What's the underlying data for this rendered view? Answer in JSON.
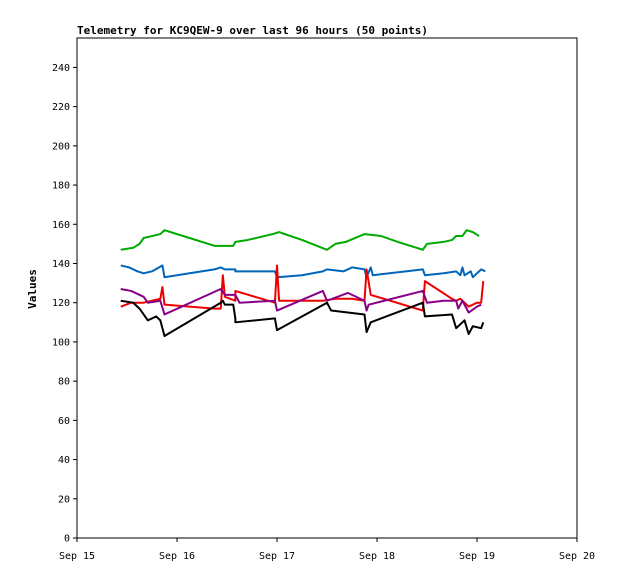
{
  "chart_data": {
    "type": "line",
    "title": "Telemetry for KC9QEW-9 over last 96 hours (50 points)",
    "xlabel": "",
    "ylabel": "Values",
    "xlim": [
      "2012-09-15",
      "2012-09-20"
    ],
    "ylim": [
      0,
      255
    ],
    "x_ticks": [
      "Sep 15",
      "Sep 16",
      "Sep 17",
      "Sep 18",
      "Sep 19",
      "Sep 20"
    ],
    "y_ticks": [
      0,
      20,
      40,
      60,
      80,
      100,
      120,
      140,
      160,
      180,
      200,
      220,
      240
    ],
    "grid": false,
    "legend": "none",
    "series": [
      {
        "color": "#00aa00",
        "points": [
          [
            "2012-09-15 10:30",
            147
          ],
          [
            "2012-09-15 13:30",
            148
          ],
          [
            "2012-09-15 15:00",
            150
          ],
          [
            "2012-09-15 16:00",
            153
          ],
          [
            "2012-09-15 18:00",
            154
          ],
          [
            "2012-09-15 20:00",
            155
          ],
          [
            "2012-09-15 21:00",
            157
          ],
          [
            "2012-09-16 03:00",
            153
          ],
          [
            "2012-09-16 09:00",
            149
          ],
          [
            "2012-09-16 11:00",
            149
          ],
          [
            "2012-09-16 13:30",
            149
          ],
          [
            "2012-09-16 14:00",
            151
          ],
          [
            "2012-09-16 17:00",
            152
          ],
          [
            "2012-09-16 23:00",
            155
          ],
          [
            "2012-09-17 00:30",
            156
          ],
          [
            "2012-09-17 06:00",
            152
          ],
          [
            "2012-09-17 12:00",
            147
          ],
          [
            "2012-09-17 14:00",
            150
          ],
          [
            "2012-09-17 16:30",
            151
          ],
          [
            "2012-09-17 21:00",
            155
          ],
          [
            "2012-09-18 01:00",
            154
          ],
          [
            "2012-09-18 05:00",
            151
          ],
          [
            "2012-09-18 11:00",
            147
          ],
          [
            "2012-09-18 12:00",
            150
          ],
          [
            "2012-09-18 16:00",
            151
          ],
          [
            "2012-09-18 18:00",
            152
          ],
          [
            "2012-09-18 19:00",
            154
          ],
          [
            "2012-09-18 20:30",
            154
          ],
          [
            "2012-09-18 21:30",
            157
          ],
          [
            "2012-09-18 23:00",
            156
          ],
          [
            "2012-09-19 00:30",
            154
          ]
        ]
      },
      {
        "color": "#0066bb",
        "points": [
          [
            "2012-09-15 10:30",
            139
          ],
          [
            "2012-09-15 12:30",
            138
          ],
          [
            "2012-09-15 14:30",
            136
          ],
          [
            "2012-09-15 16:00",
            135
          ],
          [
            "2012-09-15 18:00",
            136
          ],
          [
            "2012-09-15 20:30",
            139
          ],
          [
            "2012-09-15 21:00",
            133
          ],
          [
            "2012-09-16 03:00",
            135
          ],
          [
            "2012-09-16 09:00",
            137
          ],
          [
            "2012-09-16 10:30",
            138
          ],
          [
            "2012-09-16 11:30",
            137
          ],
          [
            "2012-09-16 14:00",
            137
          ],
          [
            "2012-09-16 14:00",
            136
          ],
          [
            "2012-09-16 23:30",
            136
          ],
          [
            "2012-09-17 00:00",
            133
          ],
          [
            "2012-09-17 06:00",
            134
          ],
          [
            "2012-09-17 11:00",
            136
          ],
          [
            "2012-09-17 12:00",
            137
          ],
          [
            "2012-09-17 16:00",
            136
          ],
          [
            "2012-09-17 18:00",
            138
          ],
          [
            "2012-09-17 21:00",
            137
          ],
          [
            "2012-09-17 21:30",
            133
          ],
          [
            "2012-09-17 22:30",
            138
          ],
          [
            "2012-09-17 23:00",
            134
          ],
          [
            "2012-09-18 11:00",
            137
          ],
          [
            "2012-09-18 11:30",
            134
          ],
          [
            "2012-09-18 16:00",
            135
          ],
          [
            "2012-09-18 19:00",
            136
          ],
          [
            "2012-09-18 20:00",
            134
          ],
          [
            "2012-09-18 20:30",
            138
          ],
          [
            "2012-09-18 21:00",
            134
          ],
          [
            "2012-09-18 22:30",
            136
          ],
          [
            "2012-09-18 23:00",
            133
          ],
          [
            "2012-09-19 01:00",
            137
          ],
          [
            "2012-09-19 02:00",
            136
          ]
        ]
      },
      {
        "color": "#ee0000",
        "points": [
          [
            "2012-09-15 10:30",
            118
          ],
          [
            "2012-09-15 13:00",
            120
          ],
          [
            "2012-09-15 16:00",
            120
          ],
          [
            "2012-09-15 20:00",
            122
          ],
          [
            "2012-09-15 20:30",
            128
          ],
          [
            "2012-09-15 21:00",
            119
          ],
          [
            "2012-09-16 09:00",
            117
          ],
          [
            "2012-09-16 10:30",
            117
          ],
          [
            "2012-09-16 11:00",
            134
          ],
          [
            "2012-09-16 11:30",
            123
          ],
          [
            "2012-09-16 14:00",
            121
          ],
          [
            "2012-09-16 14:00",
            126
          ],
          [
            "2012-09-16 23:30",
            120
          ],
          [
            "2012-09-17 00:00",
            139
          ],
          [
            "2012-09-17 00:30",
            121
          ],
          [
            "2012-09-17 11:00",
            121
          ],
          [
            "2012-09-17 14:00",
            122
          ],
          [
            "2012-09-17 18:00",
            122
          ],
          [
            "2012-09-17 21:00",
            121
          ],
          [
            "2012-09-17 21:30",
            137
          ],
          [
            "2012-09-17 22:30",
            124
          ],
          [
            "2012-09-18 11:00",
            116
          ],
          [
            "2012-09-18 11:30",
            131
          ],
          [
            "2012-09-18 18:00",
            122
          ],
          [
            "2012-09-18 19:00",
            121
          ],
          [
            "2012-09-18 20:00",
            122
          ],
          [
            "2012-09-18 22:00",
            118
          ],
          [
            "2012-09-19 00:00",
            120
          ],
          [
            "2012-09-19 01:00",
            120
          ],
          [
            "2012-09-19 01:30",
            131
          ]
        ]
      },
      {
        "color": "#880088",
        "points": [
          [
            "2012-09-15 10:30",
            127
          ],
          [
            "2012-09-15 13:00",
            126
          ],
          [
            "2012-09-15 16:00",
            123
          ],
          [
            "2012-09-15 17:00",
            120
          ],
          [
            "2012-09-15 20:00",
            121
          ],
          [
            "2012-09-15 21:00",
            114
          ],
          [
            "2012-09-16 10:30",
            127
          ],
          [
            "2012-09-16 11:30",
            124
          ],
          [
            "2012-09-16 14:00",
            124
          ],
          [
            "2012-09-16 15:00",
            120
          ],
          [
            "2012-09-16 23:30",
            121
          ],
          [
            "2012-09-17 00:00",
            116
          ],
          [
            "2012-09-17 11:00",
            126
          ],
          [
            "2012-09-17 12:00",
            121
          ],
          [
            "2012-09-17 17:00",
            125
          ],
          [
            "2012-09-17 21:00",
            121
          ],
          [
            "2012-09-17 21:30",
            116
          ],
          [
            "2012-09-17 22:00",
            119
          ],
          [
            "2012-09-18 11:00",
            126
          ],
          [
            "2012-09-18 12:00",
            120
          ],
          [
            "2012-09-18 16:00",
            121
          ],
          [
            "2012-09-18 19:00",
            121
          ],
          [
            "2012-09-18 19:30",
            117
          ],
          [
            "2012-09-18 20:30",
            121
          ],
          [
            "2012-09-18 22:00",
            115
          ],
          [
            "2012-09-19 00:00",
            118
          ],
          [
            "2012-09-19 01:00",
            119
          ]
        ]
      },
      {
        "color": "#000000",
        "points": [
          [
            "2012-09-15 10:30",
            121
          ],
          [
            "2012-09-15 13:30",
            120
          ],
          [
            "2012-09-15 15:00",
            117
          ],
          [
            "2012-09-15 17:00",
            111
          ],
          [
            "2012-09-15 19:00",
            113
          ],
          [
            "2012-09-15 20:00",
            111
          ],
          [
            "2012-09-15 21:00",
            103
          ],
          [
            "2012-09-16 10:30",
            120
          ],
          [
            "2012-09-16 11:00",
            121
          ],
          [
            "2012-09-16 11:30",
            119
          ],
          [
            "2012-09-16 13:30",
            119
          ],
          [
            "2012-09-16 14:00",
            112
          ],
          [
            "2012-09-16 14:00",
            110
          ],
          [
            "2012-09-16 23:30",
            112
          ],
          [
            "2012-09-17 00:00",
            106
          ],
          [
            "2012-09-17 12:00",
            120
          ],
          [
            "2012-09-17 13:00",
            116
          ],
          [
            "2012-09-17 21:00",
            114
          ],
          [
            "2012-09-17 21:30",
            105
          ],
          [
            "2012-09-17 22:30",
            110
          ],
          [
            "2012-09-18 11:00",
            120
          ],
          [
            "2012-09-18 11:30",
            113
          ],
          [
            "2012-09-18 18:00",
            114
          ],
          [
            "2012-09-18 19:00",
            107
          ],
          [
            "2012-09-18 21:00",
            111
          ],
          [
            "2012-09-18 22:00",
            104
          ],
          [
            "2012-09-18 23:00",
            108
          ],
          [
            "2012-09-19 01:00",
            107
          ],
          [
            "2012-09-19 01:30",
            110
          ]
        ]
      }
    ]
  }
}
